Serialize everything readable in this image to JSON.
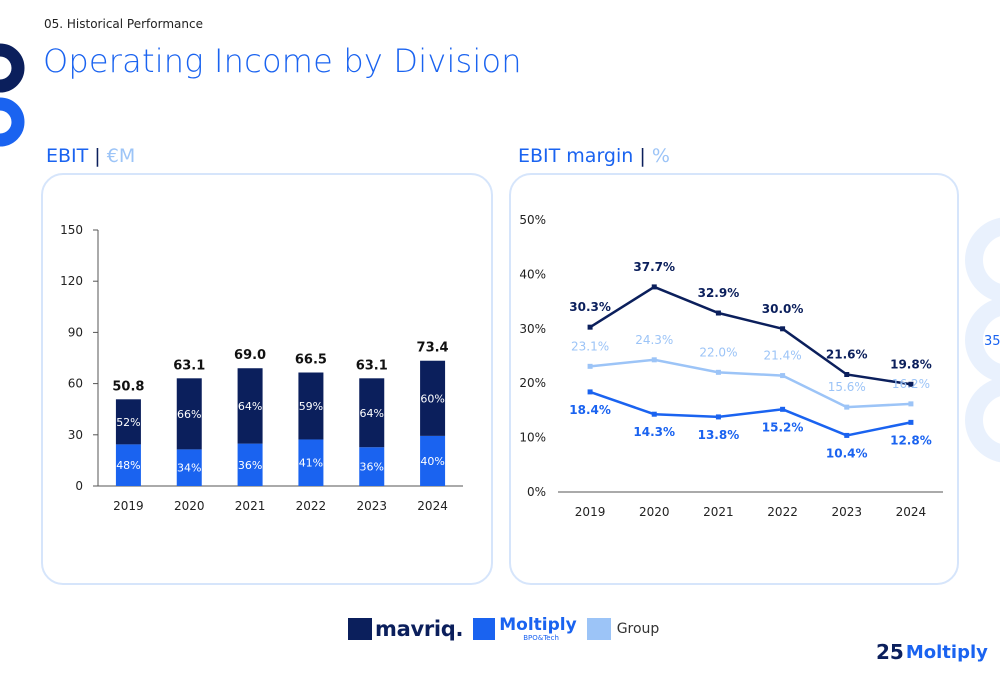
{
  "header": {
    "section_label": "05. Historical Performance",
    "title": "Operating Income by Division"
  },
  "left_panel": {
    "title_main": "EBIT",
    "title_sep": "|",
    "title_unit": "€M"
  },
  "right_panel": {
    "title_main": "EBIT margin",
    "title_sep": "|",
    "title_unit": "%"
  },
  "side_number": "35",
  "legend": {
    "mavriq": "mavriq.",
    "moltiply": "Moltiply",
    "moltiply_sub": "BPO&Tech",
    "group": "Group"
  },
  "corner_logo": {
    "number": "25",
    "name": "Moltiply"
  },
  "colors": {
    "dark": "#0b1f5c",
    "mid": "#1a63f0",
    "light": "#9cc4f7",
    "panel_border": "#d6e5fb"
  },
  "chart_data": [
    {
      "type": "bar",
      "stacked": true,
      "categories": [
        "2019",
        "2020",
        "2021",
        "2022",
        "2023",
        "2024"
      ],
      "totals": [
        50.8,
        63.1,
        69.0,
        66.5,
        63.1,
        73.4
      ],
      "total_labels": [
        "50.8",
        "63.1",
        "69.0",
        "66.5",
        "63.1",
        "73.4"
      ],
      "series": [
        {
          "name": "Moltiply",
          "share_labels": [
            "48%",
            "34%",
            "36%",
            "41%",
            "36%",
            "40%"
          ],
          "share": [
            0.48,
            0.34,
            0.36,
            0.41,
            0.36,
            0.4
          ],
          "color": "#1a63f0"
        },
        {
          "name": "mavriq.",
          "share_labels": [
            "52%",
            "66%",
            "64%",
            "59%",
            "64%",
            "60%"
          ],
          "share": [
            0.52,
            0.66,
            0.64,
            0.59,
            0.64,
            0.6
          ],
          "color": "#0b1f5c"
        }
      ],
      "ylim": [
        0,
        150
      ],
      "yticks": [
        0,
        30,
        60,
        90,
        120,
        150
      ]
    },
    {
      "type": "line",
      "categories": [
        "2019",
        "2020",
        "2021",
        "2022",
        "2023",
        "2024"
      ],
      "series": [
        {
          "name": "mavriq.",
          "values": [
            30.3,
            37.7,
            32.9,
            30.0,
            21.6,
            19.8
          ],
          "labels": [
            "30.3%",
            "37.7%",
            "32.9%",
            "30.0%",
            "21.6%",
            "19.8%"
          ],
          "color": "#0b1f5c"
        },
        {
          "name": "Group",
          "values": [
            23.1,
            24.3,
            22.0,
            21.4,
            15.6,
            16.2
          ],
          "labels": [
            "23.1%",
            "24.3%",
            "22.0%",
            "21.4%",
            "15.6%",
            "16.2%"
          ],
          "color": "#9cc4f7"
        },
        {
          "name": "Moltiply",
          "values": [
            18.4,
            14.3,
            13.8,
            15.2,
            10.4,
            12.8
          ],
          "labels": [
            "18.4%",
            "14.3%",
            "13.8%",
            "15.2%",
            "10.4%",
            "12.8%"
          ],
          "color": "#1a63f0"
        }
      ],
      "ylim": [
        0,
        50
      ],
      "yticks": [
        0,
        10,
        20,
        30,
        40,
        50
      ],
      "ytick_labels": [
        "0%",
        "10%",
        "20%",
        "30%",
        "40%",
        "50%"
      ]
    }
  ]
}
